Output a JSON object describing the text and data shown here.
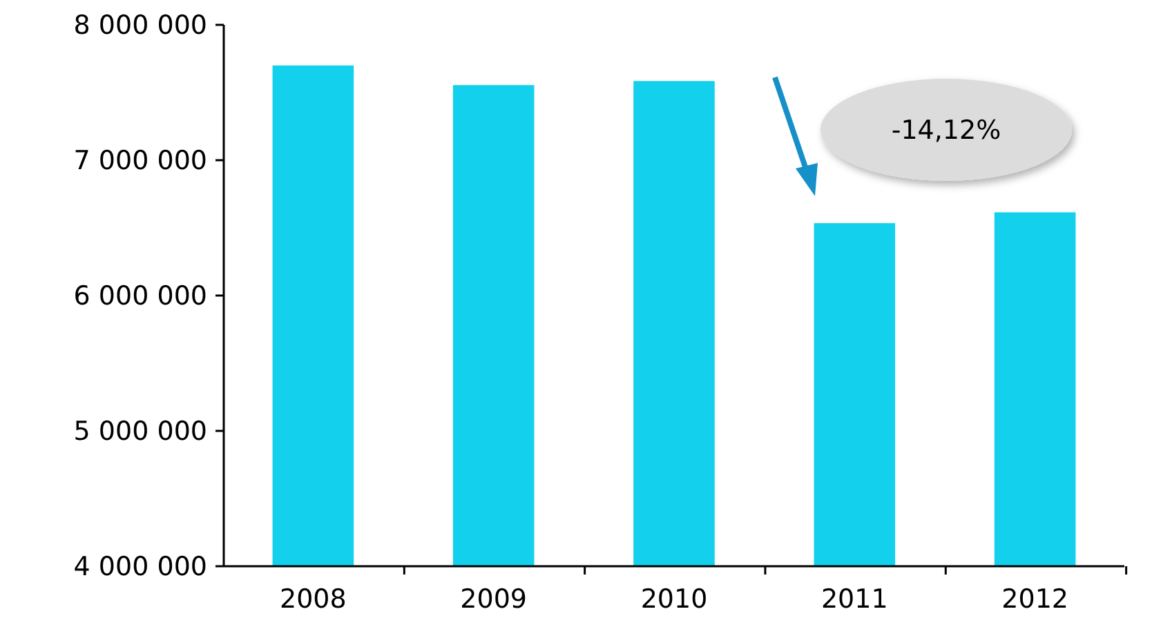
{
  "chart_data": {
    "type": "bar",
    "categories": [
      "2008",
      "2009",
      "2010",
      "2011",
      "2012"
    ],
    "values": [
      7700000,
      7555000,
      7585000,
      6535000,
      6615000
    ],
    "color": "#13d1ec",
    "ylim": [
      4000000,
      8000000
    ],
    "yticks": [
      {
        "value": 4000000,
        "label": "4 000 000"
      },
      {
        "value": 5000000,
        "label": "5 000 000"
      },
      {
        "value": 6000000,
        "label": "6 000 000"
      },
      {
        "value": 7000000,
        "label": "7 000 000"
      },
      {
        "value": 8000000,
        "label": "8 000 000"
      }
    ],
    "annotations": [
      "-14,12%"
    ]
  }
}
